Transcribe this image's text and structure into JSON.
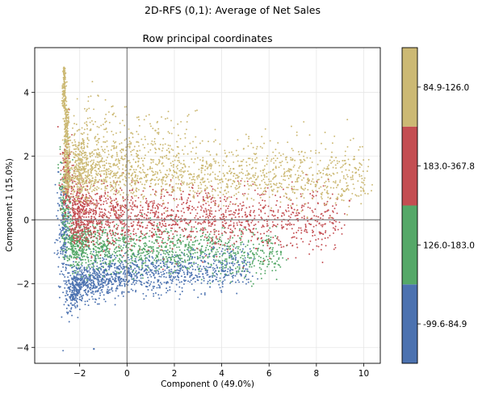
{
  "figure": {
    "suptitle": "2D-RFS (0,1): Average of Net Sales",
    "axes_title": "Row principal coordinates"
  },
  "chart_data": {
    "type": "scatter",
    "title": "Row principal coordinates",
    "xlabel": "Component 0 (49.0%)",
    "ylabel": "Component 1 (15.0%)",
    "xlim": [
      -3.9,
      10.7
    ],
    "ylim": [
      -4.5,
      5.4
    ],
    "xticks": [
      -2,
      0,
      2,
      4,
      6,
      8,
      10
    ],
    "yticks": [
      -4,
      -2,
      0,
      2,
      4
    ],
    "grid": true,
    "reference_lines": {
      "x": 0,
      "y": 0
    },
    "colorbar": {
      "position": "right",
      "labels": [
        "-99.6-84.9",
        "126.0-183.0",
        "183.0-367.8",
        "84.9-126.0"
      ],
      "colors": [
        "#4c72b0",
        "#55a868",
        "#c44e52",
        "#ccb974"
      ]
    },
    "series": [
      {
        "name": "-99.6-84.9",
        "color": "#4c72b0",
        "points": [
          [
            -2.2,
            -1.8
          ],
          [
            -2.1,
            -2.3
          ],
          [
            -1.8,
            -1.5
          ],
          [
            -1.2,
            -2.0
          ],
          [
            -0.5,
            -1.7
          ],
          [
            0.3,
            -1.9
          ],
          [
            1.0,
            -1.6
          ],
          [
            1.8,
            -1.8
          ],
          [
            2.5,
            -1.5
          ],
          [
            3.2,
            -1.7
          ],
          [
            4.0,
            -1.6
          ],
          [
            -2.9,
            1.5
          ],
          [
            -2.6,
            0.8
          ],
          [
            -2.0,
            -1.2
          ],
          [
            -0.8,
            -2.3
          ],
          [
            -1.4,
            -4.05
          ]
        ]
      },
      {
        "name": "126.0-183.0",
        "color": "#55a868",
        "points": [
          [
            -2.3,
            -0.5
          ],
          [
            -1.9,
            -0.8
          ],
          [
            -1.2,
            -1.0
          ],
          [
            -0.3,
            -1.1
          ],
          [
            0.7,
            -0.9
          ],
          [
            1.8,
            -1.0
          ],
          [
            3.0,
            -1.2
          ],
          [
            4.2,
            -1.3
          ],
          [
            5.2,
            -1.4
          ],
          [
            6.5,
            -1.0
          ],
          [
            -2.6,
            0.3
          ],
          [
            -2.8,
            1.8
          ]
        ]
      },
      {
        "name": "183.0-367.8",
        "color": "#c44e52",
        "points": [
          [
            -2.1,
            0.5
          ],
          [
            -1.5,
            0.1
          ],
          [
            -0.8,
            0.0
          ],
          [
            0.2,
            -0.2
          ],
          [
            1.3,
            -0.3
          ],
          [
            2.5,
            -0.1
          ],
          [
            3.5,
            0.2
          ],
          [
            4.6,
            0.3
          ],
          [
            5.8,
            0.4
          ],
          [
            7.0,
            0.5
          ],
          [
            8.5,
            0.3
          ],
          [
            9.4,
            0.6
          ],
          [
            -2.6,
            1.8
          ]
        ]
      },
      {
        "name": "84.9-126.0",
        "color": "#ccb974",
        "points": [
          [
            -2.6,
            4.6
          ],
          [
            -2.5,
            3.2
          ],
          [
            -1.9,
            2.4
          ],
          [
            -1.2,
            1.6
          ],
          [
            -0.3,
            1.2
          ],
          [
            0.8,
            1.4
          ],
          [
            2.0,
            1.5
          ],
          [
            3.2,
            1.7
          ],
          [
            4.5,
            1.6
          ],
          [
            5.8,
            1.4
          ],
          [
            7.2,
            1.2
          ],
          [
            8.5,
            1.6
          ],
          [
            9.6,
            1.9
          ],
          [
            10.0,
            0.9
          ],
          [
            1.2,
            2.8
          ],
          [
            -0.6,
            3.3
          ]
        ]
      }
    ]
  }
}
